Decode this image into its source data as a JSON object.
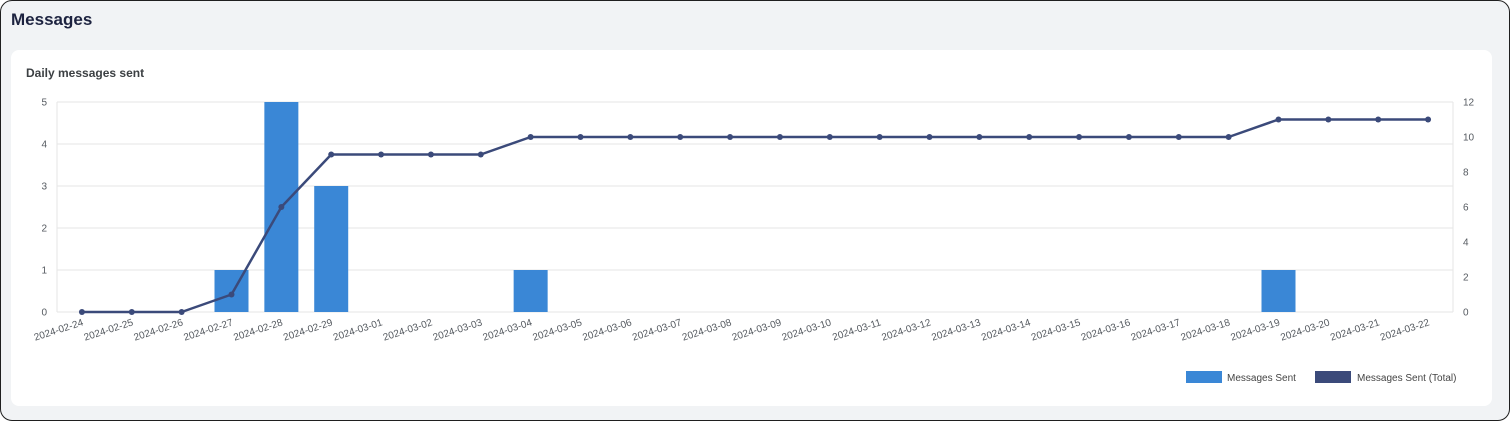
{
  "page": {
    "title": "Messages"
  },
  "card": {
    "title": "Daily messages sent"
  },
  "colors": {
    "bar": "#3a87d6",
    "line": "#3b4a7a",
    "grid": "#e6e6e6"
  },
  "chart_data": {
    "type": "bar",
    "title": "Daily messages sent",
    "categories": [
      "2024-02-24",
      "2024-02-25",
      "2024-02-26",
      "2024-02-27",
      "2024-02-28",
      "2024-02-29",
      "2024-03-01",
      "2024-03-02",
      "2024-03-03",
      "2024-03-04",
      "2024-03-05",
      "2024-03-06",
      "2024-03-07",
      "2024-03-08",
      "2024-03-09",
      "2024-03-10",
      "2024-03-11",
      "2024-03-12",
      "2024-03-13",
      "2024-03-14",
      "2024-03-15",
      "2024-03-16",
      "2024-03-17",
      "2024-03-18",
      "2024-03-19",
      "2024-03-20",
      "2024-03-21",
      "2024-03-22"
    ],
    "series": [
      {
        "name": "Messages Sent",
        "type": "bar",
        "axis": "left",
        "values": [
          0,
          0,
          0,
          1,
          5,
          3,
          0,
          0,
          0,
          1,
          0,
          0,
          0,
          0,
          0,
          0,
          0,
          0,
          0,
          0,
          0,
          0,
          0,
          0,
          1,
          0,
          0,
          0
        ]
      },
      {
        "name": "Messages Sent (Total)",
        "type": "line",
        "axis": "right",
        "values": [
          0,
          0,
          0,
          1,
          6,
          9,
          9,
          9,
          9,
          10,
          10,
          10,
          10,
          10,
          10,
          10,
          10,
          10,
          10,
          10,
          10,
          10,
          10,
          10,
          11,
          11,
          11,
          11
        ]
      }
    ],
    "y_left": {
      "min": 0,
      "max": 5,
      "ticks": [
        0,
        1,
        2,
        3,
        4,
        5
      ]
    },
    "y_right": {
      "min": 0,
      "max": 12,
      "ticks": [
        0,
        2,
        4,
        6,
        8,
        10,
        12
      ]
    },
    "grid": true,
    "legend": "bottom-right"
  }
}
